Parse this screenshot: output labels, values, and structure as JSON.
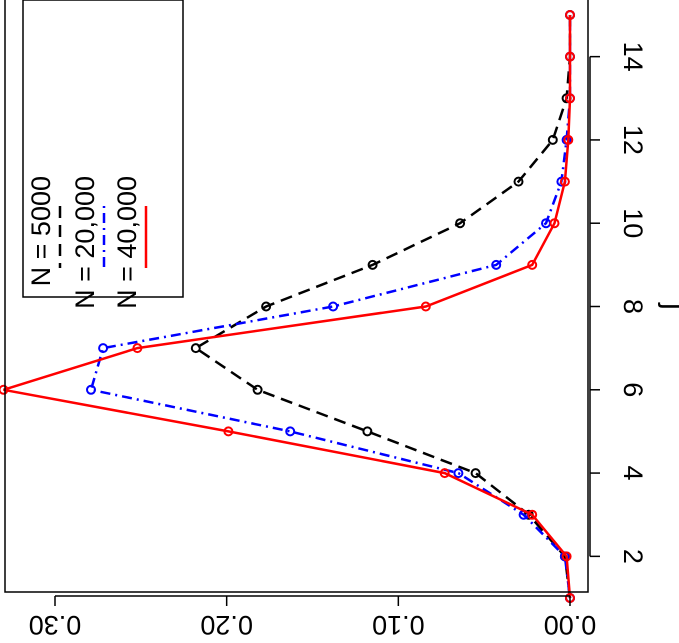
{
  "chart_data": {
    "type": "line",
    "orientation": "rotated-90-clockwise",
    "title": "",
    "xlabel": "j",
    "ylabel": "",
    "x": [
      1,
      2,
      3,
      4,
      5,
      6,
      7,
      8,
      9,
      10,
      11,
      12,
      13,
      14,
      15
    ],
    "xlim": [
      1,
      15.5
    ],
    "ylim": [
      -0.003,
      0.335
    ],
    "x_ticks": [
      2,
      4,
      6,
      8,
      10,
      12,
      14
    ],
    "x_tick_labels": [
      "2",
      "4",
      "6",
      "8",
      "10",
      "12",
      "14"
    ],
    "y_ticks": [
      0.0,
      0.1,
      0.2,
      0.3
    ],
    "y_tick_labels": [
      "0.00",
      "0.10",
      "0.20",
      "0.30"
    ],
    "grid": false,
    "legend_position": "top-left",
    "series": [
      {
        "name": "N = 5000",
        "color": "#000000",
        "line_style": "dashed",
        "marker": "open-circle",
        "values": [
          0.0,
          0.003,
          0.024,
          0.055,
          0.118,
          0.182,
          0.218,
          0.177,
          0.115,
          0.064,
          0.03,
          0.01,
          0.002,
          0.0,
          0.0
        ]
      },
      {
        "name": "N = 20,000",
        "color": "#0000ff",
        "line_style": "dotdash",
        "marker": "open-circle",
        "values": [
          0.0,
          0.003,
          0.027,
          0.065,
          0.163,
          0.279,
          0.272,
          0.138,
          0.043,
          0.014,
          0.005,
          0.002,
          0.0,
          0.0,
          0.0
        ]
      },
      {
        "name": "N = 40,000",
        "color": "#ff0000",
        "line_style": "solid",
        "marker": "open-circle",
        "values": [
          0.0,
          0.002,
          0.022,
          0.073,
          0.199,
          0.33,
          0.252,
          0.084,
          0.022,
          0.009,
          0.003,
          0.001,
          0.0,
          0.0,
          0.0
        ]
      }
    ]
  }
}
